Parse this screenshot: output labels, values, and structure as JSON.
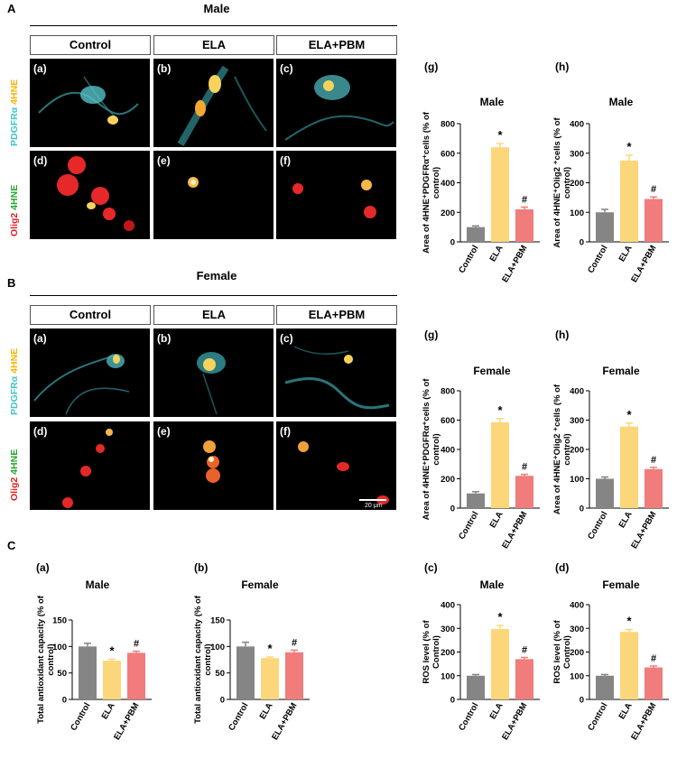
{
  "sections": {
    "A": {
      "letter": "A",
      "title": "Male"
    },
    "B": {
      "letter": "B",
      "title": "Female"
    },
    "C": {
      "letter": "C"
    }
  },
  "column_headers": [
    "Control",
    "ELA",
    "ELA+PBM"
  ],
  "row_labels": {
    "row1": {
      "marker1": "PDGFRα",
      "marker2": "4HNE",
      "marker1_color": "#3fc3c8",
      "marker2_color": "#f5b400"
    },
    "row2": {
      "marker1": "Olig2",
      "marker2": "4HNE",
      "marker1_color": "#e02020",
      "marker2_color": "#22a52b"
    }
  },
  "image_panels": {
    "top": [
      "(a)",
      "(b)",
      "(c)"
    ],
    "bottom": [
      "(d)",
      "(e)",
      "(f)"
    ]
  },
  "scale_bar": "20 μm",
  "colors": {
    "control": "#858585",
    "ela": "#fcd67a",
    "ela_pbm": "#f07c7c"
  },
  "chart_data": [
    {
      "type": "bar",
      "panel": "(g)",
      "title": "Male",
      "ylabel": "Area of 4HNE⁺PDGFRα⁺cells (% of control)",
      "categories": [
        "Control",
        "ELA",
        "ELA+PBM"
      ],
      "values": [
        100,
        640,
        220
      ],
      "errors": [
        8,
        25,
        15
      ],
      "marks": [
        "",
        "*",
        "#"
      ],
      "ylim": [
        0,
        800
      ],
      "yticks": [
        "0",
        "200",
        "400",
        "600",
        "800"
      ]
    },
    {
      "type": "bar",
      "panel": "(h)",
      "title": "Male",
      "ylabel": "Area of 4HNE⁺Olig2 ⁺cells (% of control)",
      "categories": [
        "Control",
        "ELA",
        "ELA+PBM"
      ],
      "values": [
        100,
        275,
        145
      ],
      "errors": [
        10,
        18,
        7
      ],
      "marks": [
        "",
        "*",
        "#"
      ],
      "ylim": [
        0,
        400
      ],
      "yticks": [
        "0",
        "100",
        "200",
        "300",
        "400"
      ]
    },
    {
      "type": "bar",
      "panel": "(g)",
      "title": "Female",
      "ylabel": "Area of 4HNE⁺PDGFRα⁺cells (% of control)",
      "categories": [
        "Control",
        "ELA",
        "ELA+PBM"
      ],
      "values": [
        100,
        585,
        220
      ],
      "errors": [
        12,
        25,
        10
      ],
      "marks": [
        "",
        "*",
        "#"
      ],
      "ylim": [
        0,
        800
      ],
      "yticks": [
        "0",
        "200",
        "400",
        "600",
        "800"
      ]
    },
    {
      "type": "bar",
      "panel": "(h)",
      "title": "Female",
      "ylabel": "Area of 4HNE⁺Olig2 ⁺cells (% of control)",
      "categories": [
        "Control",
        "ELA",
        "ELA+PBM"
      ],
      "values": [
        100,
        278,
        133
      ],
      "errors": [
        6,
        12,
        6
      ],
      "marks": [
        "",
        "*",
        "#"
      ],
      "ylim": [
        0,
        400
      ],
      "yticks": [
        "0",
        "100",
        "200",
        "300",
        "400"
      ]
    },
    {
      "type": "bar",
      "panel": "(a)",
      "title": "Male",
      "ylabel": "Total antioxidant capacity (% of control)",
      "categories": [
        "Control",
        "ELA",
        "ELA+PBM"
      ],
      "values": [
        100,
        73,
        88
      ],
      "errors": [
        6,
        3,
        3
      ],
      "marks": [
        "",
        "*",
        "#"
      ],
      "ylim": [
        0,
        150
      ],
      "yticks": [
        "0",
        "50",
        "100",
        "150"
      ]
    },
    {
      "type": "bar",
      "panel": "(b)",
      "title": "Female",
      "ylabel": "Total antioxidant capacity (% of control)",
      "categories": [
        "Control",
        "ELA",
        "ELA+PBM"
      ],
      "values": [
        100,
        78,
        89
      ],
      "errors": [
        8,
        2,
        4
      ],
      "marks": [
        "",
        "*",
        "#"
      ],
      "ylim": [
        0,
        150
      ],
      "yticks": [
        "0",
        "50",
        "100",
        "150"
      ]
    },
    {
      "type": "bar",
      "panel": "(c)",
      "title": "Male",
      "ylabel": "ROS level (% of Control)",
      "categories": [
        "Control",
        "ELA",
        "ELA+PBM"
      ],
      "values": [
        100,
        297,
        170
      ],
      "errors": [
        5,
        15,
        7
      ],
      "marks": [
        "",
        "*",
        "#"
      ],
      "ylim": [
        0,
        400
      ],
      "yticks": [
        "0",
        "100",
        "200",
        "300",
        "400"
      ]
    },
    {
      "type": "bar",
      "panel": "(d)",
      "title": "Female",
      "ylabel": "ROS level (% of Control)",
      "categories": [
        "Control",
        "ELA",
        "ELA+PBM"
      ],
      "values": [
        100,
        285,
        135
      ],
      "errors": [
        5,
        10,
        6
      ],
      "marks": [
        "",
        "*",
        "#"
      ],
      "ylim": [
        0,
        400
      ],
      "yticks": [
        "0",
        "100",
        "200",
        "300",
        "400"
      ]
    }
  ]
}
